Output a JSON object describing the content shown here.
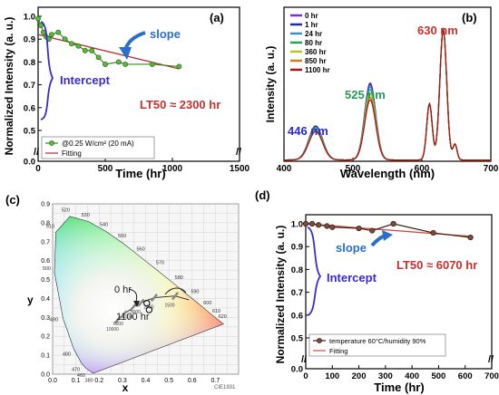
{
  "chart_data": [
    {
      "panel": "(a)",
      "type": "line",
      "xlabel": "Time (hr)",
      "ylabel": "Normalized Intensity (a. u.)",
      "xlim": [
        0,
        1500
      ],
      "ylim_upper": [
        0.5,
        1.0
      ],
      "ylim_lower": [
        0.0,
        0.5
      ],
      "x_ticks": [
        "0",
        "500",
        "1000",
        "1500"
      ],
      "y_ticks": [
        "0.0",
        "0.5",
        "0.6",
        "0.7",
        "0.8",
        "0.9",
        "1.0"
      ],
      "series": [
        {
          "name": "@0.25 W/cm² (20 mA)",
          "color": "#2e8b1e",
          "x": [
            0,
            20,
            40,
            60,
            80,
            100,
            150,
            200,
            250,
            300,
            350,
            400,
            450,
            500,
            600,
            650,
            850,
            1050
          ],
          "y": [
            0.99,
            0.96,
            0.93,
            0.91,
            0.9,
            0.92,
            0.93,
            0.9,
            0.88,
            0.87,
            0.85,
            0.85,
            0.82,
            0.79,
            0.8,
            0.79,
            0.79,
            0.78
          ]
        },
        {
          "name": "Fitting",
          "color": "#b03030",
          "x": [
            0,
            1050
          ],
          "y": [
            0.92,
            0.77
          ]
        }
      ],
      "annotations": {
        "slope": "slope",
        "intercept": "Intercept",
        "lt50": "LT50 ≈ 2300 hr"
      },
      "legend_position": "bottom-left"
    },
    {
      "panel": "(b)",
      "type": "line",
      "xlabel": "Wavelength (nm)",
      "ylabel": "Intensity (a. u.)",
      "xlim": [
        400,
        700
      ],
      "x_ticks": [
        "400",
        "500",
        "600",
        "700"
      ],
      "peaks": {
        "blue": "446 nm",
        "green": "525 nm",
        "red": "630 nm"
      },
      "series": [
        {
          "name": "0 hr",
          "color": "#7b2fd6",
          "heights": [
            0.26,
            0.59,
            1.0
          ]
        },
        {
          "name": "1 hr",
          "color": "#1e2aa8",
          "heights": [
            0.26,
            0.58,
            1.0
          ]
        },
        {
          "name": "24 hr",
          "color": "#3b8fd0",
          "heights": [
            0.25,
            0.56,
            1.0
          ]
        },
        {
          "name": "80 hr",
          "color": "#2aa050",
          "heights": [
            0.24,
            0.54,
            1.0
          ]
        },
        {
          "name": "360 hr",
          "color": "#b8c420",
          "heights": [
            0.23,
            0.51,
            1.0
          ]
        },
        {
          "name": "850 hr",
          "color": "#c68018",
          "heights": [
            0.22,
            0.48,
            1.0
          ]
        },
        {
          "name": "1100 hr",
          "color": "#a01818",
          "heights": [
            0.22,
            0.46,
            1.0
          ]
        }
      ],
      "legend_position": "top-left"
    },
    {
      "panel": "(c)",
      "type": "scatter",
      "xlabel": "x",
      "ylabel": "y",
      "xlim": [
        0.0,
        0.8
      ],
      "ylim": [
        0.0,
        0.9
      ],
      "x_ticks": [
        "0.0",
        "0.1",
        "0.2",
        "0.3",
        "0.4",
        "0.5",
        "0.6",
        "0.7"
      ],
      "y_ticks": [
        "0.0",
        "0.1",
        "0.2",
        "0.3",
        "0.4",
        "0.5",
        "0.6",
        "0.7",
        "0.8",
        "0.9"
      ],
      "points": [
        {
          "label": "0 hr",
          "x": 0.405,
          "y": 0.375
        },
        {
          "label": "1100 hr",
          "x": 0.415,
          "y": 0.34
        }
      ],
      "watermark": "CIE1931",
      "locus_labels": [
        "380",
        "460",
        "470",
        "480",
        "490",
        "500",
        "510",
        "520",
        "530",
        "540",
        "550",
        "560",
        "570",
        "580",
        "590",
        "600",
        "610",
        "620"
      ],
      "temperature_labels": [
        "10000",
        "6000",
        "4000",
        "3000",
        "2000",
        "1500"
      ],
      "grid": true
    },
    {
      "panel": "(d)",
      "type": "line",
      "xlabel": "Time (hr)",
      "ylabel": "Normalized Intensity (a. u.)",
      "xlim": [
        0,
        700
      ],
      "x_ticks": [
        "0",
        "100",
        "200",
        "300",
        "400",
        "500",
        "600",
        "700"
      ],
      "y_ticks": [
        "0.0",
        "0.5",
        "0.6",
        "0.7",
        "0.8",
        "0.9",
        "1.0"
      ],
      "series": [
        {
          "name": "temperature 60°C/humidity 90%",
          "color": "#3a1a10",
          "x": [
            0,
            24,
            48,
            80,
            100,
            200,
            250,
            330,
            480,
            620
          ],
          "y": [
            1.0,
            1.0,
            0.995,
            0.99,
            0.985,
            0.98,
            0.97,
            1.0,
            0.96,
            0.94
          ]
        },
        {
          "name": "Fitting",
          "color": "#c84a3a",
          "x": [
            0,
            620
          ],
          "y": [
            1.0,
            0.945
          ]
        }
      ],
      "annotations": {
        "slope": "slope",
        "intercept": "Intercept",
        "lt50": "LT50 ≈ 6070 hr"
      },
      "legend_position": "bottom-left"
    }
  ]
}
